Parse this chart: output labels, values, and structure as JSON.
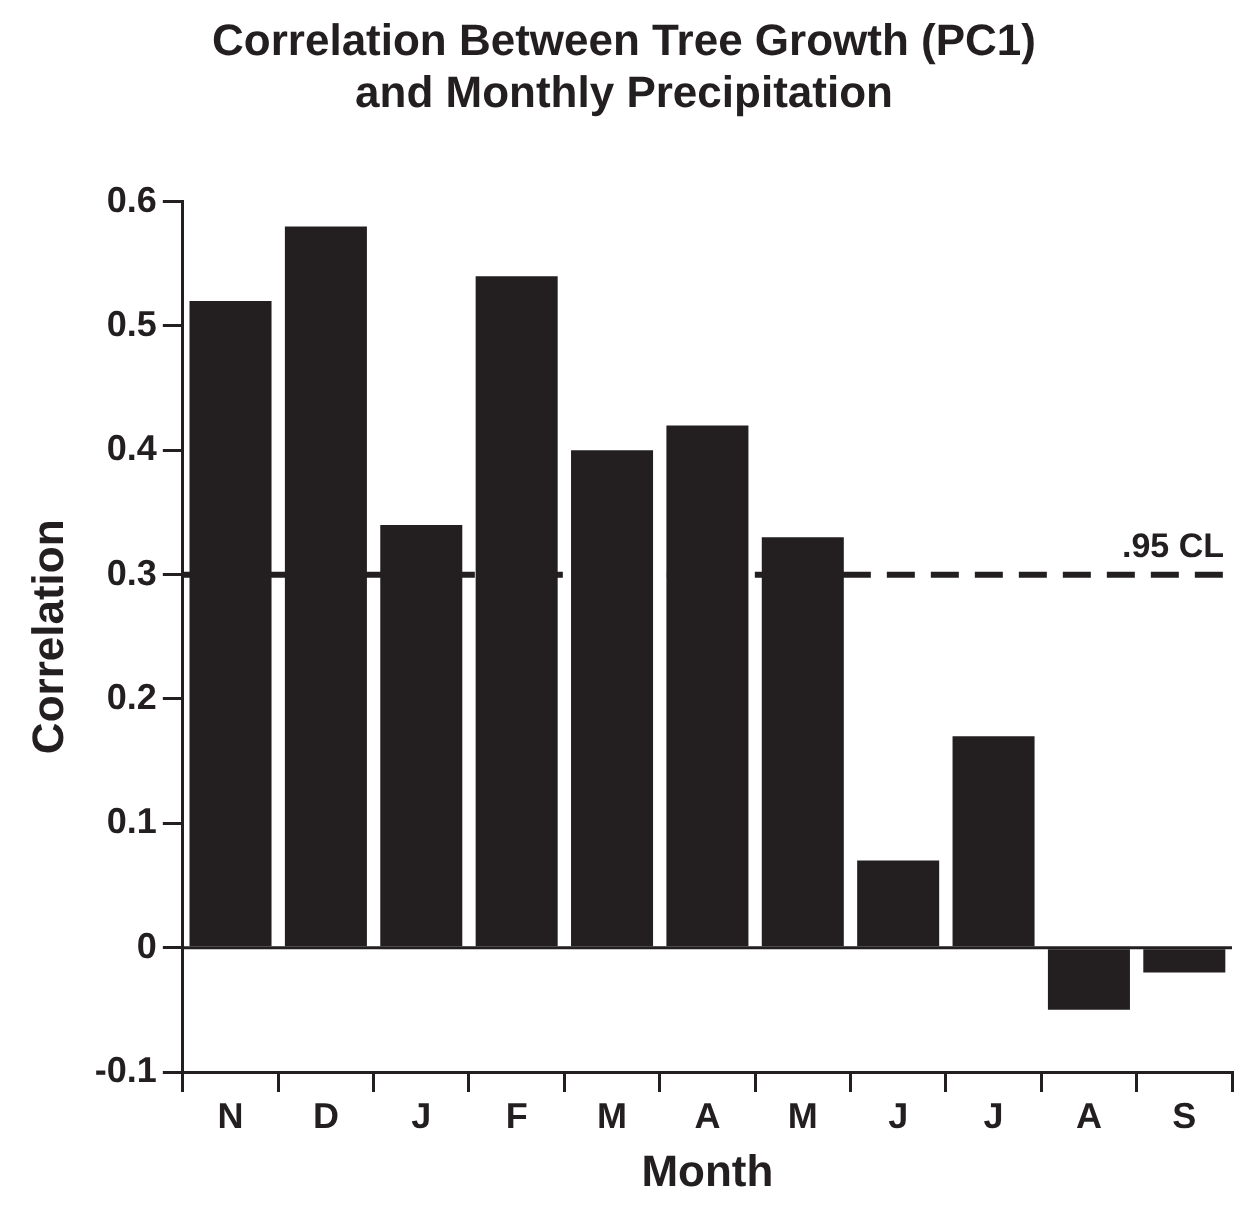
{
  "chart_data": {
    "type": "bar",
    "title": [
      "Correlation Between Tree Growth (PC1)",
      "and Monthly Precipitation"
    ],
    "xlabel": "Month",
    "ylabel": "Correlation",
    "categories": [
      "N",
      "D",
      "J",
      "F",
      "M",
      "A",
      "M",
      "J",
      "J",
      "A",
      "S"
    ],
    "values": [
      0.52,
      0.58,
      0.34,
      0.54,
      0.4,
      0.42,
      0.33,
      0.07,
      0.17,
      -0.05,
      -0.02
    ],
    "color": "#231f20",
    "ylim": [
      -0.1,
      0.6
    ],
    "yticks": [
      {
        "value": -0.1,
        "label": "-0.1"
      },
      0,
      0.1,
      0.2,
      0.3,
      0.4,
      0.5,
      0.6
    ],
    "ref_lines": [
      {
        "axis": "y",
        "value": 0.3,
        "label": ".95 CL",
        "line_style": "dashed",
        "color": "#231f20"
      }
    ],
    "grid": false,
    "legend": false
  }
}
